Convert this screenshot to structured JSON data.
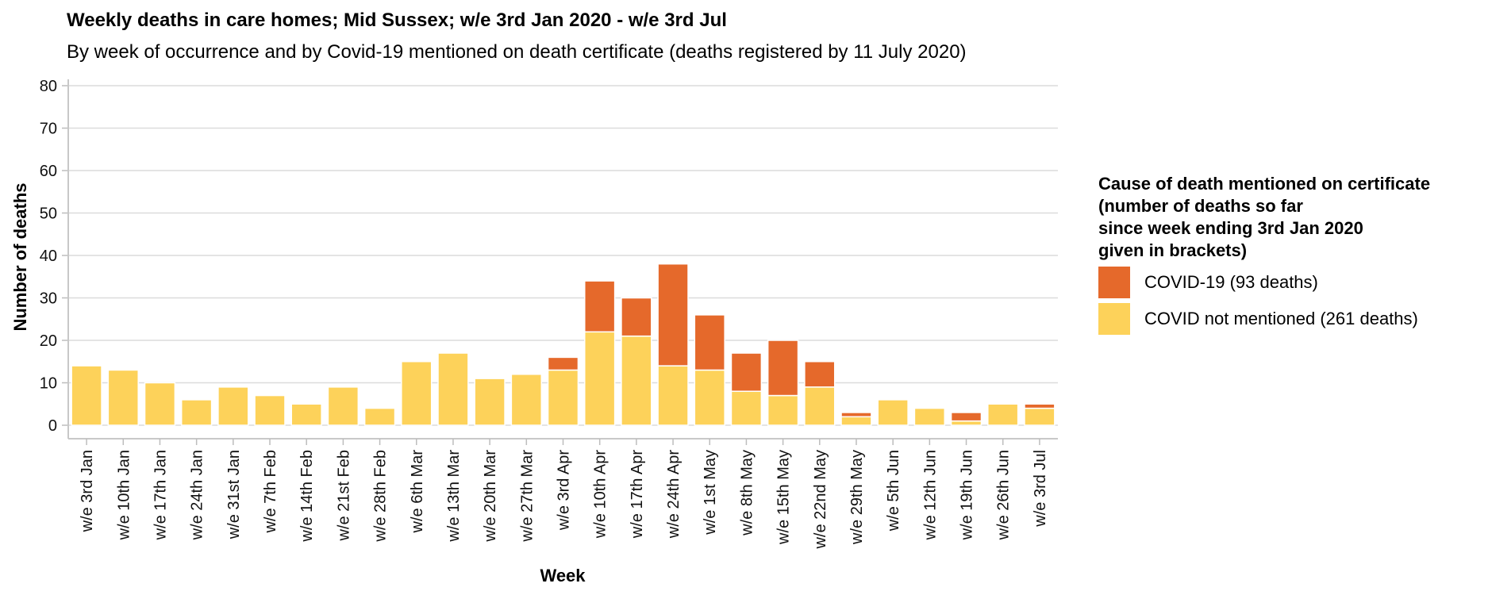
{
  "chart_data": {
    "type": "bar",
    "stacked": true,
    "title": "Weekly deaths in care homes; Mid Sussex; w/e 3rd Jan 2020 - w/e 3rd Jul",
    "subtitle": "By week of occurrence and by Covid-19 mentioned on death certificate (deaths registered by 11 July 2020)",
    "xlabel": "Week",
    "ylabel": "Number of deaths",
    "ylim": [
      0,
      80
    ],
    "yticks": [
      0,
      10,
      20,
      30,
      40,
      50,
      60,
      70,
      80
    ],
    "grid": true,
    "legend_position": "right",
    "legend_title": [
      "Cause of death mentioned on certificate",
      "(number of deaths so far",
      "since week ending 3rd Jan 2020",
      "given in brackets)"
    ],
    "categories": [
      "w/e 3rd Jan",
      "w/e 10th Jan",
      "w/e 17th Jan",
      "w/e 24th Jan",
      "w/e 31st Jan",
      "w/e 7th Feb",
      "w/e 14th Feb",
      "w/e 21st Feb",
      "w/e 28th Feb",
      "w/e 6th Mar",
      "w/e 13th Mar",
      "w/e 20th Mar",
      "w/e 27th Mar",
      "w/e 3rd Apr",
      "w/e 10th Apr",
      "w/e 17th Apr",
      "w/e 24th Apr",
      "w/e 1st May",
      "w/e 8th May",
      "w/e 15th May",
      "w/e 22nd May",
      "w/e 29th May",
      "w/e 5th Jun",
      "w/e 12th Jun",
      "w/e 19th Jun",
      "w/e 26th Jun",
      "w/e 3rd Jul"
    ],
    "series": [
      {
        "name": "COVID not mentioned (261 deaths)",
        "color": "#fdd25a",
        "values": [
          14,
          13,
          10,
          6,
          9,
          7,
          5,
          9,
          4,
          15,
          17,
          11,
          12,
          13,
          22,
          21,
          14,
          13,
          8,
          7,
          9,
          2,
          6,
          4,
          1,
          5,
          4
        ]
      },
      {
        "name": "COVID-19 (93 deaths)",
        "color": "#e5692b",
        "values": [
          0,
          0,
          0,
          0,
          0,
          0,
          0,
          0,
          0,
          0,
          0,
          0,
          0,
          3,
          12,
          9,
          24,
          13,
          9,
          13,
          6,
          1,
          0,
          0,
          2,
          0,
          1
        ]
      }
    ]
  }
}
